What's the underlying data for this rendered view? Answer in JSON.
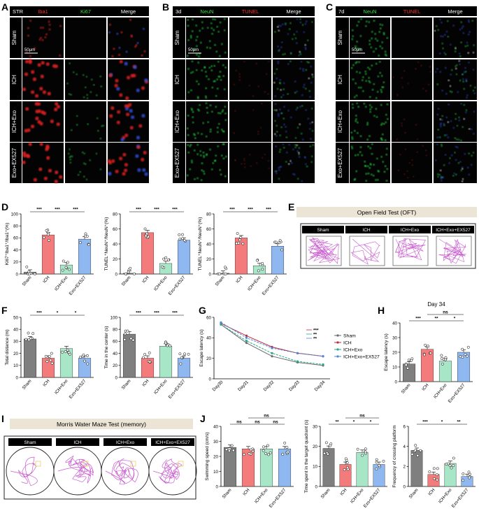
{
  "panel_letters": [
    "A",
    "B",
    "C",
    "D",
    "E",
    "F",
    "G",
    "H",
    "I",
    "J"
  ],
  "colors": {
    "sham": "#7f7f7f",
    "ich": "#f47b7b",
    "exo": "#a8e6c8",
    "ex527": "#8fb8f0",
    "path": "#c040c8",
    "micro_red": "#e02020",
    "micro_green": "#20d040",
    "micro_blue": "#3050e0"
  },
  "panel_a": {
    "headers": [
      "STR",
      "Iba1",
      "Ki67",
      "Merge"
    ],
    "rows": [
      "Sham",
      "ICH",
      "ICH+Exo",
      "Exo+EX527"
    ],
    "scale": "50μm"
  },
  "panel_b": {
    "headers": [
      "3d",
      "NeuN",
      "TUNEL",
      "Merge"
    ],
    "rows": [
      "Sham",
      "ICH",
      "ICH+Exo",
      "Exo+EX527"
    ],
    "scale": "50μm"
  },
  "panel_c": {
    "headers": [
      "7d",
      "NeuN",
      "TUNEL",
      "Merge"
    ],
    "rows": [
      "Sham",
      "ICH",
      "ICH+Exo",
      "Exo+EX527"
    ],
    "scale": "50μm"
  },
  "oft": {
    "title": "Open Field Test (OFT)",
    "groups": [
      "Sham",
      "ICH",
      "ICH+Exo",
      "ICH+Exo+EX527"
    ]
  },
  "mwm": {
    "title": "Morris Water Maze Test (memory)",
    "groups": [
      "Sham",
      "ICH",
      "ICH+Exo",
      "ICH+Exo+EX527"
    ]
  },
  "chart_data": [
    {
      "panel": "D1",
      "type": "bar",
      "categories": [
        "Sham",
        "ICH",
        "ICH+Exo",
        "Exo+EX527"
      ],
      "values": [
        3,
        65,
        15,
        58
      ],
      "ylabel": "Ki67⁺Iba1⁺/Iba1⁺(%)",
      "ylim": [
        0,
        100
      ],
      "yticks": [
        0,
        20,
        40,
        60,
        80,
        100
      ],
      "sig": [
        [
          "***",
          0,
          1,
          0
        ],
        [
          "***",
          1,
          2,
          0
        ],
        [
          "***",
          2,
          3,
          0
        ]
      ]
    },
    {
      "panel": "D2",
      "type": "bar",
      "categories": [
        "Sham",
        "ICH",
        "ICH+Exo",
        "Exo+EX527"
      ],
      "values": [
        1,
        55,
        14,
        45
      ],
      "ylabel": "TUNEL⁺NeuN⁺/NeuN⁺(%)",
      "ylim": [
        0,
        80
      ],
      "yticks": [
        0,
        20,
        40,
        60,
        80
      ],
      "sig": [
        [
          "***",
          0,
          1,
          0
        ],
        [
          "***",
          1,
          2,
          0
        ],
        [
          "***",
          2,
          3,
          0
        ]
      ]
    },
    {
      "panel": "D3",
      "type": "bar",
      "categories": [
        "Sham",
        "ICH",
        "ICH+Exo",
        "Exo+EX527"
      ],
      "values": [
        1,
        48,
        11,
        37
      ],
      "ylabel": "TUNEL⁺NeuN⁺/NeuN⁺(%)",
      "ylim": [
        0,
        80
      ],
      "yticks": [
        0,
        20,
        40,
        60,
        80
      ],
      "sig": [
        [
          "***",
          0,
          1,
          0
        ],
        [
          "***",
          1,
          2,
          0
        ],
        [
          "***",
          2,
          3,
          0
        ]
      ]
    },
    {
      "panel": "F1",
      "type": "bar",
      "categories": [
        "Sham",
        "ICH",
        "ICH+Exo",
        "Exo+EX527"
      ],
      "values": [
        32,
        16,
        24,
        16
      ],
      "ylabel": "Total distance (m)",
      "ylim": [
        0,
        50
      ],
      "yticks": [
        0,
        10,
        20,
        30,
        40,
        50
      ],
      "sig": [
        [
          "***",
          0,
          1,
          0
        ],
        [
          "*",
          1,
          2,
          0
        ],
        [
          "*",
          2,
          3,
          0
        ]
      ]
    },
    {
      "panel": "F2",
      "type": "bar",
      "categories": [
        "Sham",
        "ICH",
        "ICH+Exo",
        "Exo+EX527"
      ],
      "values": [
        72,
        32,
        52,
        32
      ],
      "ylabel": "Time in the center (s)",
      "ylim": [
        0,
        100
      ],
      "yticks": [
        0,
        20,
        40,
        60,
        80,
        100
      ],
      "sig": [
        [
          "***",
          0,
          1,
          0
        ],
        [
          "***",
          1,
          2,
          0
        ],
        [
          "***",
          2,
          3,
          0
        ]
      ]
    },
    {
      "panel": "G",
      "type": "line",
      "categories": [
        "Day30",
        "Day31",
        "Day32",
        "Day33",
        "Day34"
      ],
      "ylabel": "Escape latency (s)",
      "ylim": [
        0,
        60
      ],
      "yticks": [
        0,
        20,
        40,
        60
      ],
      "series": [
        {
          "name": "Sham",
          "values": [
            53,
            35,
            22,
            16,
            13
          ]
        },
        {
          "name": "ICH",
          "values": [
            54,
            42,
            31,
            25,
            22
          ]
        },
        {
          "name": "ICH+Exo",
          "values": [
            53,
            37,
            25,
            17,
            14
          ]
        },
        {
          "name": "ICH+Exo+EX527",
          "values": [
            55,
            40,
            30,
            25,
            22
          ]
        }
      ],
      "legend_sig": [
        "***",
        "**",
        "**"
      ]
    },
    {
      "panel": "H",
      "type": "bar",
      "title": "Day 34",
      "categories": [
        "Sham",
        "ICH",
        "ICH+Exo",
        "Exo+EX527"
      ],
      "values": [
        12,
        22,
        14,
        20
      ],
      "ylabel": "Escape latency (s)",
      "ylim": [
        0,
        40
      ],
      "yticks": [
        0,
        10,
        20,
        30,
        40
      ],
      "sig": [
        [
          "***",
          0,
          1,
          0
        ],
        [
          "**",
          1,
          2,
          0
        ],
        [
          "*",
          2,
          3,
          0
        ],
        [
          "ns",
          1,
          3,
          1
        ]
      ]
    },
    {
      "panel": "J1",
      "type": "bar",
      "categories": [
        "Sham",
        "ICH",
        "ICH+Exo",
        "Exo+EX527"
      ],
      "values": [
        26,
        25,
        25,
        25
      ],
      "ylabel": "Swimming speed (cm/s)",
      "ylim": [
        0,
        40
      ],
      "yticks": [
        0,
        10,
        20,
        30,
        40
      ],
      "sig": [
        [
          "ns",
          0,
          1,
          0
        ],
        [
          "ns",
          1,
          2,
          0
        ],
        [
          "ns",
          2,
          3,
          0
        ],
        [
          "ns",
          1,
          3,
          1
        ]
      ]
    },
    {
      "panel": "J2",
      "type": "bar",
      "categories": [
        "Sham",
        "ICH",
        "ICH+Exo",
        "Exo+EX527"
      ],
      "values": [
        19,
        11,
        17,
        11
      ],
      "ylabel": "Time spent in the target quadrant (s)",
      "ylim": [
        0,
        30
      ],
      "yticks": [
        0,
        10,
        20,
        30
      ],
      "sig": [
        [
          "**",
          0,
          1,
          0
        ],
        [
          "*",
          1,
          2,
          0
        ],
        [
          "*",
          2,
          3,
          0
        ],
        [
          "ns",
          1,
          3,
          1
        ]
      ]
    },
    {
      "panel": "J3",
      "type": "bar",
      "categories": [
        "Sham",
        "ICH",
        "ICH+Exo",
        "Exo+EX527"
      ],
      "values": [
        3.6,
        1.2,
        2.3,
        1.0
      ],
      "ylabel": "Frequency of crossing platform",
      "ylim": [
        0,
        6
      ],
      "yticks": [
        0,
        2,
        4,
        6
      ],
      "sig": [
        [
          "***",
          0,
          1,
          0
        ],
        [
          "*",
          1,
          2,
          0
        ],
        [
          "**",
          2,
          3,
          0
        ]
      ]
    }
  ]
}
